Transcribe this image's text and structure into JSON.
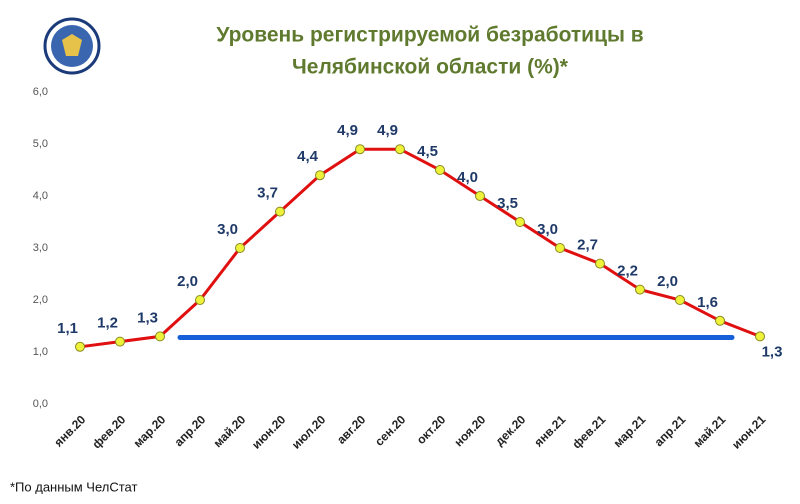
{
  "chart_data": {
    "type": "line",
    "title": [
      "Уровень регистрируемой безработицы в",
      "Челябинской области (%)*"
    ],
    "footnote": "*По данным ЧелСтат",
    "categories": [
      "янв.20",
      "фев.20",
      "мар.20",
      "апр.20",
      "май.20",
      "июн.20",
      "июл.20",
      "авг.20",
      "сен.20",
      "окт.20",
      "ноя.20",
      "дек.20",
      "янв.21",
      "фев.21",
      "мар.21",
      "апр.21",
      "май.21",
      "июн.21"
    ],
    "values": [
      1.1,
      1.2,
      1.3,
      2.0,
      3.0,
      3.7,
      4.4,
      4.9,
      4.9,
      4.5,
      4.0,
      3.5,
      3.0,
      2.7,
      2.2,
      2.0,
      1.6,
      1.3
    ],
    "value_labels": [
      "1,1",
      "1,2",
      "1,3",
      "2,0",
      "3,0",
      "3,7",
      "4,4",
      "4,9",
      "4,9",
      "4,5",
      "4,0",
      "3,5",
      "3,0",
      "2,7",
      "2,2",
      "2,0",
      "1,6",
      "1,3"
    ],
    "color": "#e01010",
    "marker_color": "#eef23a",
    "reference_line": {
      "value": 1.28,
      "color": "#1560d8"
    },
    "ylim": [
      0,
      6
    ],
    "yticks": [
      {
        "value": 0,
        "label": "0,0"
      },
      {
        "value": 1,
        "label": "1,0"
      },
      {
        "value": 2,
        "label": "2,0"
      },
      {
        "value": 3,
        "label": "3,0"
      },
      {
        "value": 4,
        "label": "4,0"
      },
      {
        "value": 5,
        "label": "5,0"
      },
      {
        "value": 6,
        "label": "6,0"
      }
    ],
    "grid": false
  }
}
